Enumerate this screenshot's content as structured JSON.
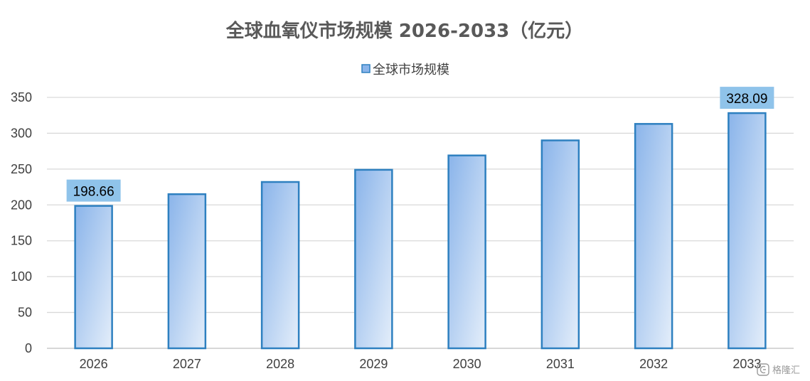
{
  "chart_data": {
    "type": "bar",
    "title": "全球血氧仪市场规模 2026-2033（亿元）",
    "xlabel": "",
    "ylabel": "",
    "categories": [
      "2026",
      "2027",
      "2028",
      "2029",
      "2030",
      "2031",
      "2032",
      "2033"
    ],
    "series": [
      {
        "name": "全球市场规模",
        "values": [
          198.66,
          215,
          232,
          249,
          269,
          290,
          313,
          328.09
        ]
      }
    ],
    "data_labels": [
      {
        "index": 0,
        "text": "198.66"
      },
      {
        "index": 7,
        "text": "328.09"
      }
    ],
    "ylim": [
      0,
      350
    ],
    "yticks": [
      0,
      50,
      100,
      150,
      200,
      250,
      300,
      350
    ],
    "grid": true,
    "legend_position": "top-center",
    "colors": {
      "bar_fill_top": "#8ab4ea",
      "bar_fill_bottom": "#e4eefa",
      "bar_border": "#2e80c0",
      "label_box": "#8fc3ea",
      "grid": "#d9d9d9",
      "axis": "#bfbfbf"
    }
  },
  "watermark": {
    "icon": "gelonghui-logo-icon",
    "text": "格隆汇"
  }
}
